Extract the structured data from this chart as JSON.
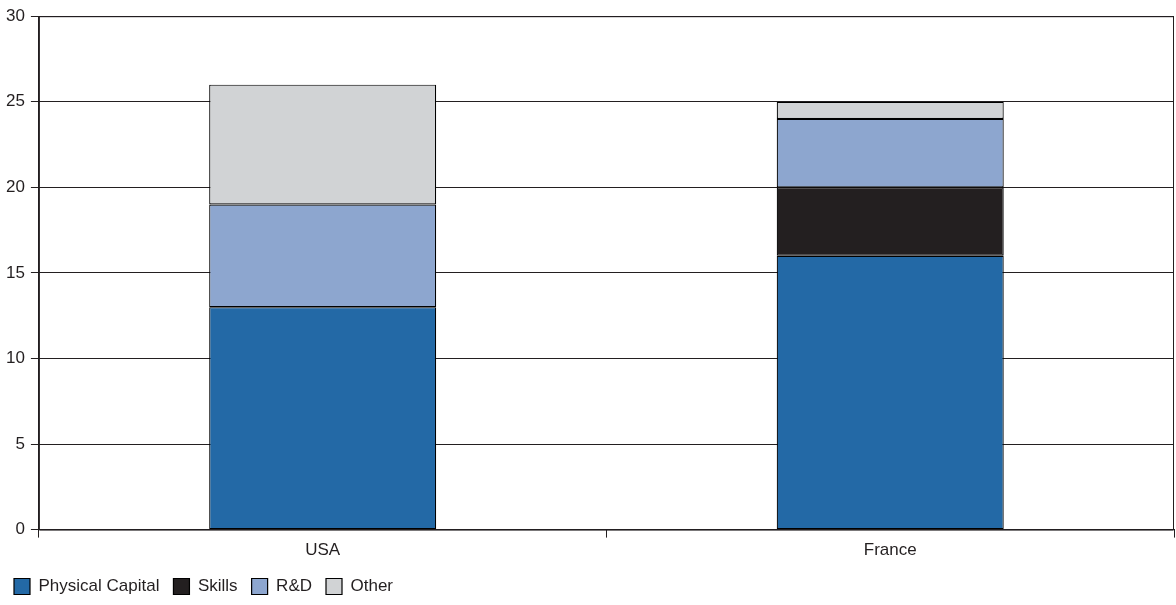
{
  "chart_data": {
    "type": "bar",
    "stacked": true,
    "categories": [
      "USA",
      "France"
    ],
    "series": [
      {
        "name": "Physical Capital",
        "color": "#2369a6",
        "values": [
          13,
          16
        ]
      },
      {
        "name": "Skills",
        "color": "#231f20",
        "values": [
          0,
          4
        ]
      },
      {
        "name": "R&D",
        "color": "#8da6cf",
        "values": [
          6,
          4
        ]
      },
      {
        "name": "Other",
        "color": "#d1d3d5",
        "values": [
          7,
          1
        ]
      }
    ],
    "ylim": [
      0,
      30
    ],
    "yticks": [
      0,
      5,
      10,
      15,
      20,
      25,
      30
    ],
    "grid": "y",
    "legend": "bottom left"
  }
}
